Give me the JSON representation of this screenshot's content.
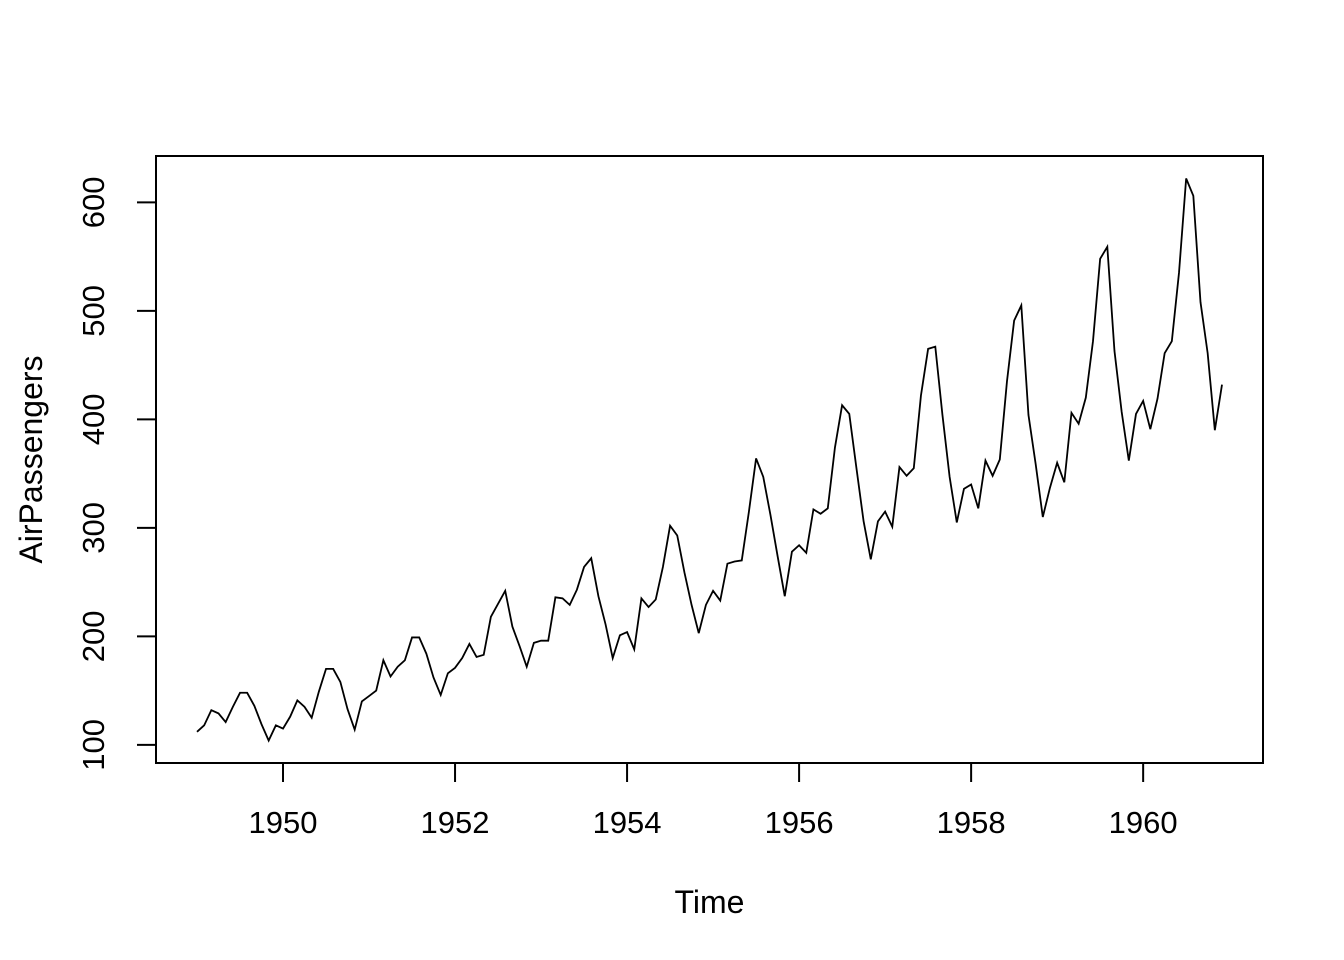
{
  "figure": {
    "background_color": "#ffffff"
  },
  "chart_data": {
    "type": "line",
    "title": "",
    "xlabel": "Time",
    "ylabel": "AirPassengers",
    "legend": "none",
    "grid": false,
    "line_color": "#000000",
    "axis_color": "#000000",
    "text_color": "#000000",
    "start_year": 1949,
    "frequency": 12,
    "x_ticks": [
      1950,
      1952,
      1954,
      1956,
      1958,
      1960
    ],
    "y_ticks": [
      100,
      200,
      300,
      400,
      500,
      600
    ],
    "xlim": [
      1949.0,
      1960.9167
    ],
    "ylim": [
      104,
      622
    ],
    "axis_expansion": 0.04,
    "series": [
      {
        "name": "AirPassengers",
        "values": [
          112,
          118,
          132,
          129,
          121,
          135,
          148,
          148,
          136,
          119,
          104,
          118,
          115,
          126,
          141,
          135,
          125,
          149,
          170,
          170,
          158,
          133,
          114,
          140,
          145,
          150,
          178,
          163,
          172,
          178,
          199,
          199,
          184,
          162,
          146,
          166,
          171,
          180,
          193,
          181,
          183,
          218,
          230,
          242,
          209,
          191,
          172,
          194,
          196,
          196,
          236,
          235,
          229,
          243,
          264,
          272,
          237,
          211,
          180,
          201,
          204,
          188,
          235,
          227,
          234,
          264,
          302,
          293,
          259,
          229,
          203,
          229,
          242,
          233,
          267,
          269,
          270,
          315,
          364,
          347,
          312,
          274,
          237,
          278,
          284,
          277,
          317,
          313,
          318,
          374,
          413,
          405,
          355,
          306,
          271,
          306,
          315,
          301,
          356,
          348,
          355,
          422,
          465,
          467,
          404,
          347,
          305,
          336,
          340,
          318,
          362,
          348,
          363,
          435,
          491,
          505,
          404,
          359,
          310,
          337,
          360,
          342,
          406,
          396,
          420,
          472,
          548,
          559,
          463,
          407,
          362,
          405,
          417,
          391,
          419,
          461,
          472,
          535,
          622,
          606,
          508,
          461,
          390,
          432
        ]
      }
    ]
  }
}
